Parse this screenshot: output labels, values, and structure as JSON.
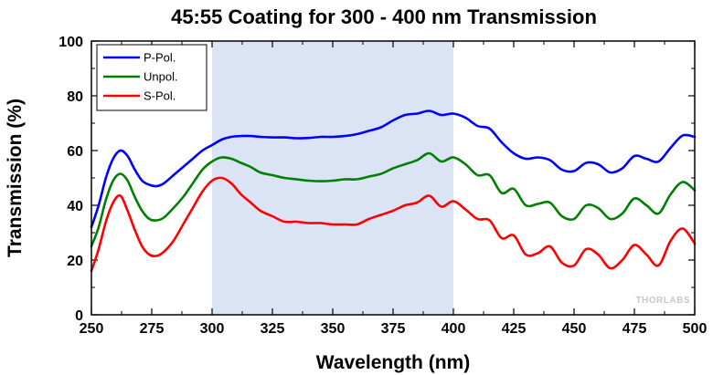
{
  "chart_data": {
    "type": "line",
    "title": "45:55 Coating for 300 - 400 nm Transmission",
    "xlabel": "Wavelength (nm)",
    "ylabel": "Transmission (%)",
    "xlim": [
      250,
      500
    ],
    "ylim": [
      0,
      100
    ],
    "xticks": [
      250,
      275,
      300,
      325,
      350,
      375,
      400,
      425,
      450,
      475,
      500
    ],
    "yticks": [
      0,
      20,
      40,
      60,
      80,
      100
    ],
    "highlight_band": [
      300,
      400
    ],
    "legend_position": "top-left",
    "watermark": "THORLABS",
    "series": [
      {
        "name": "P-Pol.",
        "color": "#0000ff",
        "points": [
          [
            250,
            32
          ],
          [
            253,
            40
          ],
          [
            256,
            50
          ],
          [
            259,
            57
          ],
          [
            262,
            60
          ],
          [
            265,
            58
          ],
          [
            268,
            53
          ],
          [
            271,
            49
          ],
          [
            274,
            47.5
          ],
          [
            277,
            47
          ],
          [
            280,
            48
          ],
          [
            284,
            51
          ],
          [
            288,
            54
          ],
          [
            292,
            57
          ],
          [
            296,
            60
          ],
          [
            300,
            62
          ],
          [
            304,
            64
          ],
          [
            308,
            65
          ],
          [
            312,
            65.3
          ],
          [
            316,
            65.3
          ],
          [
            320,
            65
          ],
          [
            325,
            64.8
          ],
          [
            330,
            64.8
          ],
          [
            335,
            64.5
          ],
          [
            340,
            64.6
          ],
          [
            345,
            65
          ],
          [
            350,
            65
          ],
          [
            355,
            65.3
          ],
          [
            360,
            66
          ],
          [
            365,
            67.2
          ],
          [
            370,
            68.5
          ],
          [
            375,
            71
          ],
          [
            380,
            73
          ],
          [
            385,
            73.5
          ],
          [
            390,
            74.5
          ],
          [
            395,
            73
          ],
          [
            400,
            73.5
          ],
          [
            405,
            72
          ],
          [
            410,
            69
          ],
          [
            415,
            68
          ],
          [
            420,
            63
          ],
          [
            425,
            59
          ],
          [
            430,
            57
          ],
          [
            435,
            57.5
          ],
          [
            440,
            56.5
          ],
          [
            445,
            53
          ],
          [
            450,
            52.5
          ],
          [
            455,
            55.5
          ],
          [
            460,
            55
          ],
          [
            465,
            52
          ],
          [
            470,
            53.5
          ],
          [
            475,
            58
          ],
          [
            480,
            57
          ],
          [
            485,
            56
          ],
          [
            490,
            61
          ],
          [
            495,
            65.5
          ],
          [
            500,
            65
          ]
        ]
      },
      {
        "name": "Unpol.",
        "color": "#008000",
        "points": [
          [
            250,
            25
          ],
          [
            253,
            32
          ],
          [
            256,
            42
          ],
          [
            259,
            49
          ],
          [
            262,
            51.5
          ],
          [
            265,
            49
          ],
          [
            268,
            43
          ],
          [
            271,
            38
          ],
          [
            274,
            35
          ],
          [
            277,
            34.5
          ],
          [
            280,
            35.5
          ],
          [
            284,
            39
          ],
          [
            288,
            43
          ],
          [
            292,
            48
          ],
          [
            296,
            53
          ],
          [
            300,
            56
          ],
          [
            304,
            57.5
          ],
          [
            308,
            57
          ],
          [
            312,
            55.5
          ],
          [
            316,
            54
          ],
          [
            320,
            52
          ],
          [
            325,
            51
          ],
          [
            330,
            50
          ],
          [
            335,
            49.5
          ],
          [
            340,
            49
          ],
          [
            345,
            48.8
          ],
          [
            350,
            49
          ],
          [
            355,
            49.5
          ],
          [
            360,
            49.5
          ],
          [
            365,
            50.5
          ],
          [
            370,
            51.5
          ],
          [
            375,
            53.5
          ],
          [
            380,
            55
          ],
          [
            385,
            56.5
          ],
          [
            390,
            59
          ],
          [
            395,
            56
          ],
          [
            400,
            57.5
          ],
          [
            405,
            55
          ],
          [
            410,
            51
          ],
          [
            415,
            51
          ],
          [
            420,
            44.5
          ],
          [
            425,
            46
          ],
          [
            430,
            40
          ],
          [
            435,
            40.5
          ],
          [
            440,
            41
          ],
          [
            445,
            36
          ],
          [
            450,
            35
          ],
          [
            455,
            40
          ],
          [
            460,
            39
          ],
          [
            465,
            35
          ],
          [
            470,
            37
          ],
          [
            475,
            42.5
          ],
          [
            480,
            40
          ],
          [
            485,
            37
          ],
          [
            490,
            44
          ],
          [
            495,
            48.5
          ],
          [
            500,
            45.5
          ]
        ]
      },
      {
        "name": "S-Pol.",
        "color": "#ff0000",
        "points": [
          [
            250,
            16
          ],
          [
            253,
            24
          ],
          [
            256,
            34
          ],
          [
            259,
            41
          ],
          [
            262,
            43.5
          ],
          [
            265,
            38
          ],
          [
            268,
            31
          ],
          [
            271,
            25
          ],
          [
            274,
            22
          ],
          [
            277,
            21.5
          ],
          [
            280,
            23
          ],
          [
            284,
            27
          ],
          [
            288,
            33
          ],
          [
            292,
            39
          ],
          [
            296,
            45
          ],
          [
            300,
            49
          ],
          [
            304,
            50
          ],
          [
            308,
            48
          ],
          [
            312,
            44
          ],
          [
            316,
            41
          ],
          [
            320,
            38
          ],
          [
            325,
            36
          ],
          [
            330,
            34
          ],
          [
            335,
            34
          ],
          [
            340,
            33.5
          ],
          [
            345,
            33.5
          ],
          [
            350,
            33
          ],
          [
            355,
            33
          ],
          [
            360,
            33
          ],
          [
            365,
            35
          ],
          [
            370,
            36.5
          ],
          [
            375,
            38
          ],
          [
            380,
            40
          ],
          [
            385,
            41
          ],
          [
            390,
            43.5
          ],
          [
            395,
            39.5
          ],
          [
            400,
            41.5
          ],
          [
            405,
            38.5
          ],
          [
            410,
            35
          ],
          [
            415,
            34.5
          ],
          [
            420,
            28
          ],
          [
            425,
            29
          ],
          [
            430,
            22
          ],
          [
            435,
            22.5
          ],
          [
            440,
            25
          ],
          [
            445,
            19
          ],
          [
            450,
            18
          ],
          [
            455,
            24
          ],
          [
            460,
            22
          ],
          [
            465,
            17
          ],
          [
            470,
            20
          ],
          [
            475,
            25.5
          ],
          [
            480,
            22
          ],
          [
            485,
            18
          ],
          [
            490,
            27
          ],
          [
            495,
            31.5
          ],
          [
            500,
            26
          ]
        ]
      }
    ]
  }
}
